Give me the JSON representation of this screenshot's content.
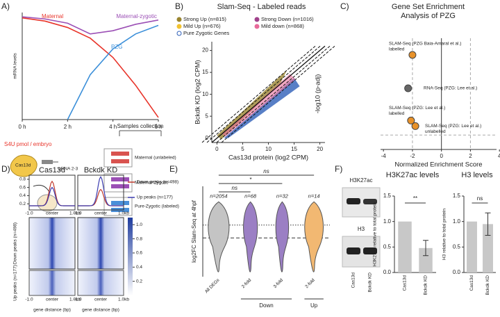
{
  "figure": {
    "panel_labels": [
      "A)",
      "B)",
      "C)",
      "D)",
      "E)",
      "F)"
    ],
    "schematic": {
      "dose": "S4U pmol / embryo",
      "cas": "Cas13d",
      "grna": "gRNA 2-3",
      "collection": "Samples collection",
      "samples": [
        "Maternal (unlabeled)",
        "Maternal-Zygotic",
        "Pure-Zygotic (labeled)"
      ]
    },
    "blot": {
      "bands": [
        "H3K27ac",
        "H3"
      ],
      "lanes": [
        "Cas13d",
        "Bckdk KD"
      ]
    }
  },
  "chart_data": [
    {
      "type": "line",
      "ylabel": "mRNA levels",
      "x": [
        0,
        1,
        2,
        3,
        4,
        5,
        6
      ],
      "xlim": [
        0,
        6
      ],
      "xticks": [
        {
          "value": 0,
          "label": "0 h"
        },
        {
          "value": 2,
          "label": "2 h"
        },
        {
          "value": 4,
          "label": "4 h"
        },
        {
          "value": 6,
          "label": "6 h"
        }
      ],
      "ylim": [
        0,
        1
      ],
      "series": [
        {
          "name": "Maternal",
          "color": "#e8342a",
          "values": [
            0.95,
            0.92,
            0.86,
            0.76,
            0.58,
            0.32,
            0.02
          ]
        },
        {
          "name": "Maternal-zygotic",
          "color": "#9b4fb5",
          "values": [
            0.96,
            0.94,
            0.9,
            0.8,
            0.83,
            0.89,
            0.93
          ]
        },
        {
          "name": "PZG",
          "color": "#3b8fd9",
          "values": [
            null,
            null,
            0,
            0.42,
            0.66,
            0.8,
            0.88
          ]
        }
      ]
    },
    {
      "type": "scatter",
      "title": "Slam-Seq - Labeled reads",
      "xlabel": "Cas13d protein (log2 CPM)",
      "ylabel": "Bckdk KD (log2 CPM)",
      "xlim": [
        -1,
        21
      ],
      "xticks": [
        0,
        5,
        10,
        15,
        20
      ],
      "ylim": [
        -1,
        22
      ],
      "yticks": [
        0,
        5,
        10,
        15,
        20
      ],
      "series": [
        {
          "name": "Strong Up (n=815)",
          "color": "#9a8530"
        },
        {
          "name": "Strong Down (n=1016)",
          "color": "#a0428c"
        },
        {
          "name": "Mild Up (n=676)",
          "color": "#f2c230"
        },
        {
          "name": "Mild down (n=868)",
          "color": "#e86a9a"
        },
        {
          "name": "Pure Zygotic Genes",
          "color": "#2e5fb8"
        }
      ]
    },
    {
      "type": "scatter",
      "title": [
        "Gene Set Enrichment",
        "Analysis of PZG"
      ],
      "xlabel": "Normalized Enrichment Score",
      "ylabel": "-log10 (p-adj)",
      "xlim": [
        -4.2,
        3.8
      ],
      "xticks": [
        -4,
        -2,
        0,
        2,
        4
      ],
      "ylim": [
        0,
        10
      ],
      "vlines": [
        -2,
        2
      ],
      "hline": 1.3,
      "x": [
        -2,
        -2.3,
        -2.1,
        -1.8
      ],
      "values": [
        8.5,
        5.5,
        2.6,
        2.1
      ],
      "colors": [
        "#e8922a",
        "#666666",
        "#e8922a",
        "#e8922a"
      ],
      "point_labels": [
        [
          "SLAM-Seq (PZG Baia-Amaral et al.)",
          "labelled"
        ],
        [
          "RNA-Seq (PZG: Lee et al.)"
        ],
        [
          "SLAM-Seq (PZG: Lee et al.)",
          "labelled"
        ],
        [
          "SLAM-Seq (PZG: Lee et al.)",
          "unlabelled"
        ]
      ]
    },
    {
      "type": "heatmap",
      "columns": [
        "Cas13d",
        "Bckdk KD"
      ],
      "profile_ylim": [
        0.05,
        0.9
      ],
      "profile_yticks": [
        0.2,
        0.4,
        0.6,
        0.8
      ],
      "series": [
        {
          "name": "Down peaks (n=498)",
          "color": "#c0392b",
          "values": [
            0.75,
            0.55
          ]
        },
        {
          "name": "Up peaks (n=177)",
          "color": "#3b3bb0",
          "values": [
            0.6,
            0.86
          ]
        }
      ],
      "xtick_labels": [
        "-1.0",
        "center",
        "1.0kb"
      ],
      "rows": [
        "Down peaks (n=498)",
        "Up peaks (n=177)"
      ],
      "xlabel": "gene distance (bp)",
      "colorbar_lim": [
        0,
        1.1
      ],
      "colorbar_ticks": [
        0.2,
        0.4,
        0.6,
        0.8,
        {
          "value": 1,
          "label": "1.0"
        }
      ]
    },
    {
      "type": "violin",
      "ylabel": "log2FC Slam-Seq at 4hpf",
      "ylim": [
        -4,
        3
      ],
      "reflines": [
        0,
        -1
      ],
      "categories": [
        "All DEGs",
        "2-fold",
        "3-fold",
        "2-fold"
      ],
      "colors": [
        "#c4c4c4",
        "#9b7fc4",
        "#9b7fc4",
        "#f2b872"
      ],
      "n_labels": [
        "n=2054",
        "n=68",
        "n=32",
        "n=14"
      ],
      "groups": [
        {
          "label": "Down",
          "span": [
            1,
            2
          ]
        },
        {
          "label": "Up",
          "span": [
            3,
            3
          ]
        }
      ],
      "comparisons": [
        {
          "label": "ns",
          "pair": [
            0,
            3
          ]
        },
        {
          "label": "*",
          "pair": [
            0,
            2
          ]
        },
        {
          "label": "ns",
          "pair": [
            0,
            1
          ]
        }
      ]
    },
    {
      "type": "bar",
      "title": "H3K27ac levels",
      "ylabel": "H3K27ac relative to total protein",
      "categories": [
        "Cas13d",
        "Bckdk KD"
      ],
      "values": [
        1.0,
        0.48
      ],
      "errors": [
        0,
        0.15
      ],
      "color": "#c8c8c8",
      "ylim": [
        0,
        1.5
      ],
      "yticks": [
        {
          "value": 0,
          "label": "0.0"
        },
        0.5,
        {
          "value": 1,
          "label": "1.0"
        },
        1.5
      ],
      "significance": "**"
    },
    {
      "type": "bar",
      "title": "H3 levels",
      "ylabel": "H3 relative to total protein",
      "categories": [
        "Cas13d",
        "Bckdk KD"
      ],
      "values": [
        1.0,
        0.95
      ],
      "errors": [
        0,
        0.22
      ],
      "color": "#c8c8c8",
      "ylim": [
        0,
        1.5
      ],
      "yticks": [
        {
          "value": 0,
          "label": "0.0"
        },
        0.5,
        {
          "value": 1,
          "label": "1.0"
        },
        1.5
      ],
      "significance": "ns"
    }
  ]
}
